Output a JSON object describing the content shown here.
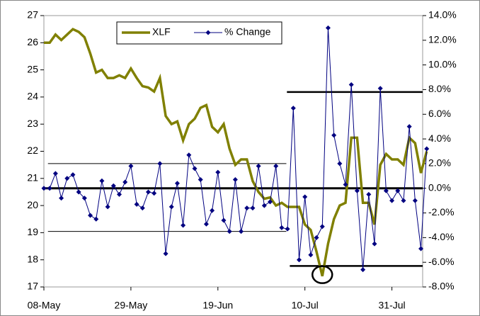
{
  "chart_data": {
    "type": "line",
    "categories": [
      "08-May",
      null,
      null,
      null,
      null,
      null,
      null,
      null,
      null,
      null,
      null,
      null,
      null,
      null,
      null,
      "29-May",
      null,
      null,
      null,
      null,
      null,
      null,
      null,
      null,
      null,
      null,
      null,
      null,
      null,
      null,
      "19-Jun",
      null,
      null,
      null,
      null,
      null,
      null,
      null,
      null,
      null,
      null,
      null,
      null,
      null,
      null,
      "10-Jul",
      null,
      null,
      null,
      null,
      null,
      null,
      null,
      null,
      null,
      null,
      null,
      null,
      null,
      null,
      "31-Jul",
      null,
      null,
      null,
      null,
      null,
      null
    ],
    "series": [
      {
        "name": "XLF",
        "color": "#808000",
        "values": [
          26.0,
          26.0,
          26.3,
          26.1,
          26.3,
          26.5,
          26.4,
          26.2,
          25.6,
          24.9,
          25.0,
          24.7,
          24.7,
          24.8,
          24.7,
          25.05,
          24.7,
          24.4,
          24.35,
          24.2,
          24.7,
          23.3,
          23.0,
          23.1,
          22.4,
          23.0,
          23.2,
          23.6,
          23.7,
          22.9,
          22.7,
          23.0,
          22.1,
          21.5,
          21.7,
          21.7,
          20.9,
          20.5,
          20.25,
          20.3,
          20.0,
          20.1,
          19.95,
          19.95,
          19.95,
          19.3,
          19.1,
          18.3,
          17.4,
          18.6,
          19.5,
          20.0,
          20.1,
          22.5,
          22.5,
          20.1,
          20.1,
          19.3,
          21.5,
          21.9,
          21.7,
          21.7,
          21.5,
          22.5,
          22.3,
          21.2,
          22.0
        ]
      },
      {
        "name": "% Change",
        "color": "#000080",
        "axis": "y2",
        "values": [
          0.0,
          0.0,
          1.2,
          -0.8,
          0.8,
          1.1,
          -0.3,
          -0.8,
          -2.2,
          -2.5,
          0.6,
          -1.5,
          0.2,
          -0.5,
          0.5,
          1.8,
          -1.3,
          -1.6,
          -0.3,
          -0.4,
          2.0,
          -5.3,
          -1.5,
          0.4,
          -3.0,
          2.7,
          1.6,
          0.7,
          -2.9,
          -1.8,
          1.3,
          -2.6,
          -3.5,
          0.7,
          -3.5,
          -1.6,
          -1.6,
          1.8,
          -1.4,
          -1.1,
          1.8,
          -3.2,
          -3.3,
          6.5,
          -5.8,
          -0.7,
          -5.4,
          -4.0,
          -3.1,
          13.0,
          4.3,
          2.0,
          0.3,
          8.4,
          -0.2,
          -6.6,
          -0.5,
          -4.5,
          8.1,
          -0.2,
          -1.0,
          -0.2,
          -1.0,
          5.0,
          -1.0,
          -4.9,
          3.2
        ]
      }
    ],
    "ylim": [
      17,
      27
    ],
    "yticks": [
      17,
      18,
      19,
      20,
      21,
      22,
      23,
      24,
      25,
      26,
      27
    ],
    "y2lim": [
      -8,
      14
    ],
    "y2ticks": [
      {
        "value": -8,
        "label": "-8.0%"
      },
      {
        "value": -6,
        "label": "-6.0%"
      },
      {
        "value": -4,
        "label": "-4.0%"
      },
      {
        "value": -2,
        "label": "-2.0%"
      },
      {
        "value": 0,
        "label": "0.0%"
      },
      {
        "value": 2,
        "label": "2.0%"
      },
      {
        "value": 4,
        "label": "4.0%"
      },
      {
        "value": 6,
        "label": "6.0%"
      },
      {
        "value": 8,
        "label": "8.0%"
      },
      {
        "value": 10,
        "label": "10.0%"
      },
      {
        "value": 12,
        "label": "12.0%"
      },
      {
        "value": 14,
        "label": "14.0%"
      }
    ],
    "reference_lines": [
      2.0,
      -3.5,
      0.0,
      7.8,
      -6.3
    ],
    "legend": "top"
  }
}
